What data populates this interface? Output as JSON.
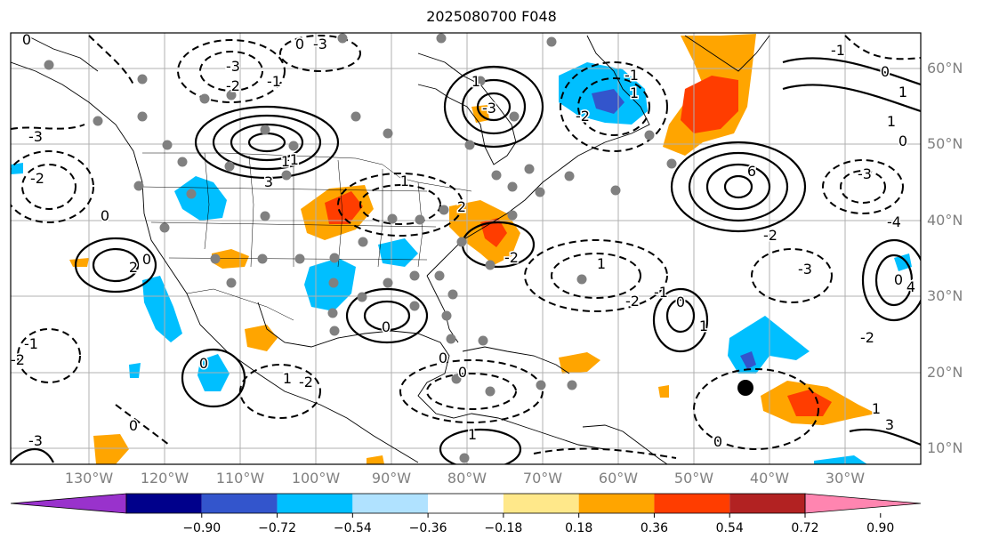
{
  "title": "2025080700 F048",
  "map": {
    "lon_labels": [
      "130°W",
      "120°W",
      "110°W",
      "100°W",
      "90°W",
      "80°W",
      "70°W",
      "60°W",
      "50°W",
      "40°W",
      "30°W"
    ],
    "lat_labels": [
      "60°N",
      "50°N",
      "40°N",
      "30°N",
      "20°N",
      "10°N"
    ],
    "contour_labels": [
      "0",
      "-3",
      "-2",
      "-1",
      "2",
      "3",
      "-3",
      "0",
      "0",
      "-1",
      "1",
      "0",
      "-3",
      "1",
      "1",
      "6",
      "-3",
      "0",
      "-2",
      "-3",
      "0",
      "1",
      "0",
      "1",
      "-2",
      "-4",
      "1",
      "2",
      "-2",
      "-1",
      "0",
      "-2",
      "1",
      "0",
      "-1",
      "0",
      "0",
      "1",
      "4",
      "-3",
      "3",
      "1",
      "-2",
      "0",
      "-1",
      "-2",
      "1",
      "-3",
      "-2",
      "-2",
      "0",
      "1",
      "-1",
      "0"
    ],
    "colors": {
      "neg_strong": "#1e66cc",
      "neg_medium": "#00bfff",
      "pos_medium": "#ffa500",
      "pos_strong": "#ff3d00",
      "storm_marker": "#000000",
      "station_dot": "#808080"
    }
  },
  "colorbar": {
    "ticks": [
      "−0.90",
      "−0.72",
      "−0.54",
      "−0.36",
      "−0.18",
      "0.18",
      "0.36",
      "0.54",
      "0.72",
      "0.90"
    ],
    "colors": [
      "#9932cc",
      "#00008b",
      "#3355cc",
      "#00bfff",
      "#b0e2ff",
      "#ffffff",
      "#ffe88a",
      "#ffa500",
      "#ff3d00",
      "#b22222",
      "#ff85b0"
    ]
  }
}
